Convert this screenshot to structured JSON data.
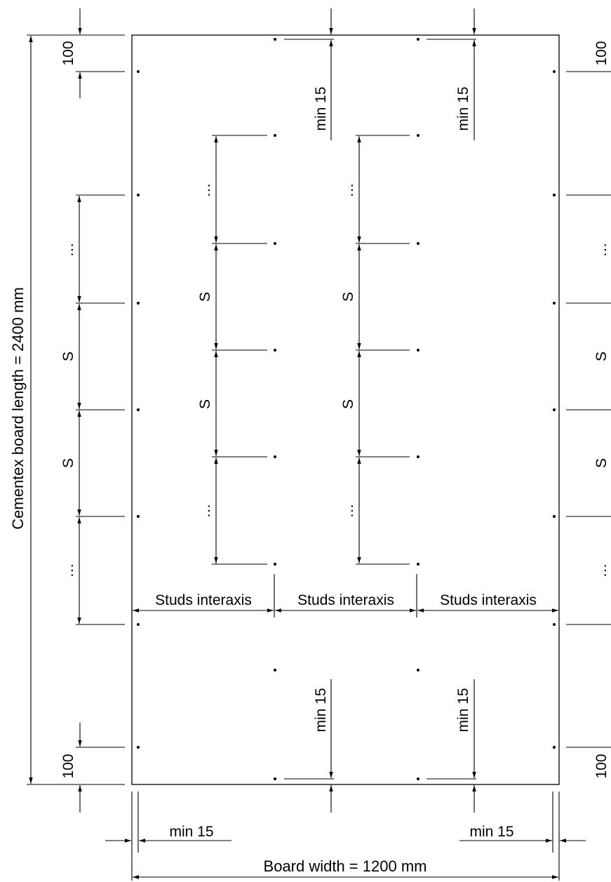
{
  "labels": {
    "board_length": "Cementex board length = 2400 mm",
    "board_width": "Board width = 1200 mm",
    "studs_interaxis": "Studs interaxis",
    "min15": "min 15",
    "edge100": "100",
    "spacing": "S",
    "ellipsis": "…"
  }
}
